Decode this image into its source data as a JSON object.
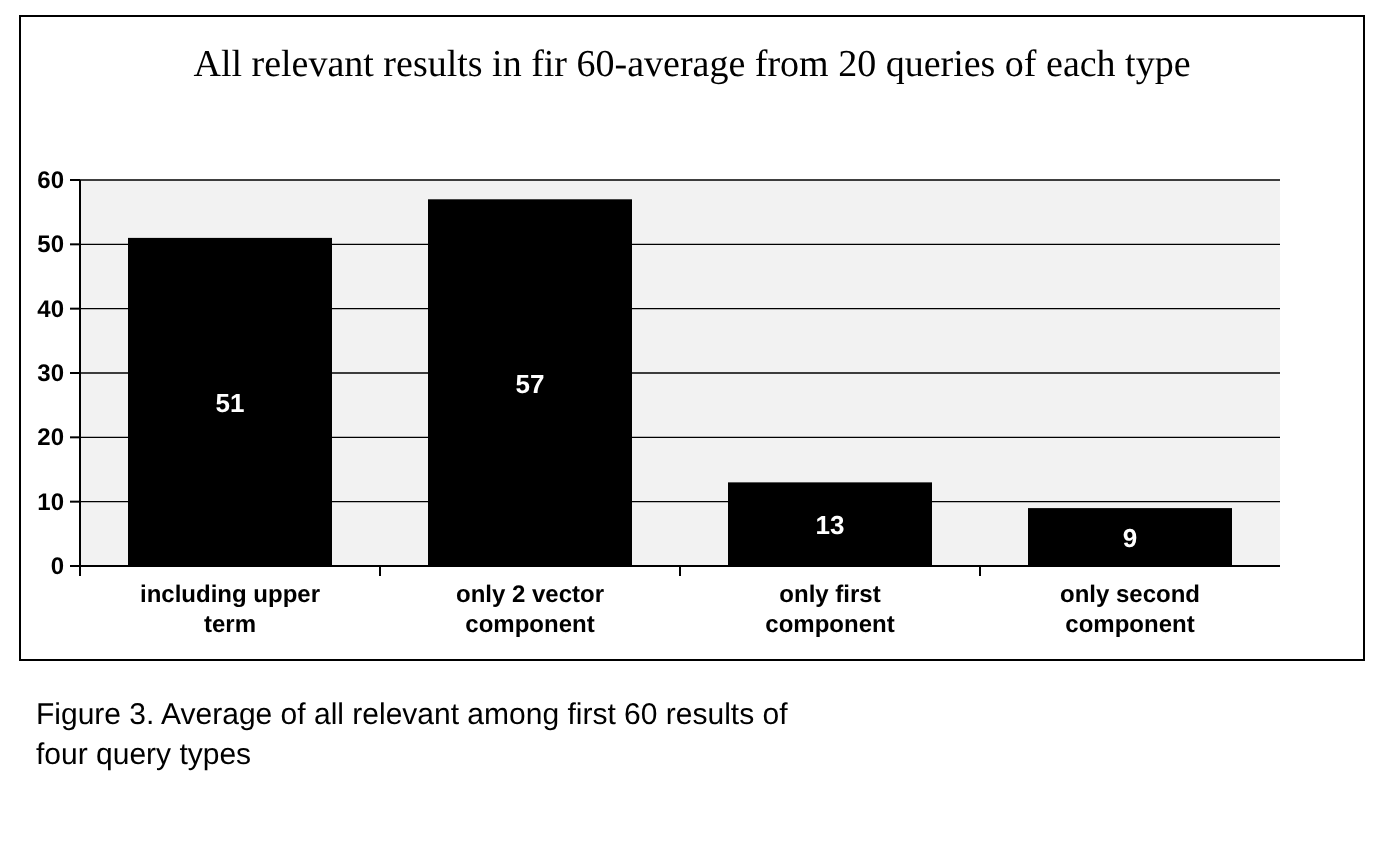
{
  "chart_data": {
    "type": "bar",
    "title": "All relevant results in fir 60-average from 20 queries of each type",
    "categories": [
      "including upper term",
      "only 2 vector component",
      "only first component",
      "only second component"
    ],
    "values": [
      51,
      57,
      13,
      9
    ],
    "color": "#000000",
    "data_labels": true,
    "ylim": [
      0,
      60
    ],
    "yticks": [
      0,
      10,
      20,
      30,
      40,
      50,
      60
    ],
    "grid": "y",
    "annotations": [
      "Figure 3. Average of all relevant among first 60 results of four query types"
    ]
  }
}
